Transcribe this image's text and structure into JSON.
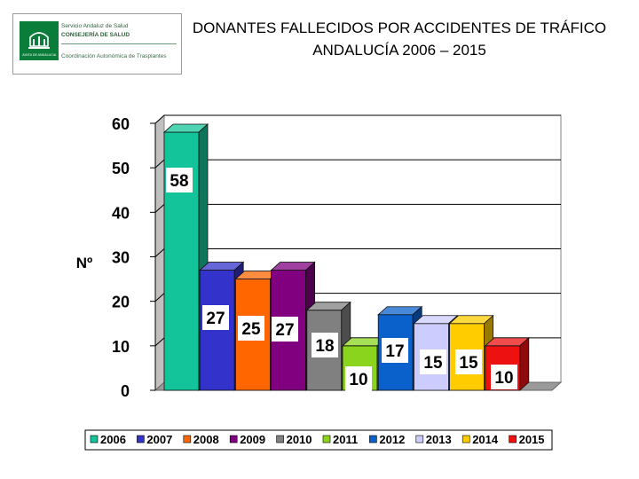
{
  "header": {
    "title_line1": "DONANTES FALLECIDOS POR ACCIDENTES DE TRÁFICO",
    "title_line2": "ANDALUCÍA 2006 – 2015"
  },
  "logo": {
    "line1": "Servicio Andaluz de Salud",
    "line2": "CONSEJERÍA DE SALUD",
    "line3": "Coordinación Autonómica de Trasplantes",
    "emblem_text": "JUNTA DE ANDALUCIA"
  },
  "chart_data": {
    "type": "bar",
    "title": "DONANTES FALLECIDOS POR ACCIDENTES DE TRÁFICO ANDALUCÍA 2006 – 2015",
    "xlabel": "",
    "ylabel": "Nº",
    "ylim": [
      0,
      60
    ],
    "yticks": [
      0,
      10,
      20,
      30,
      40,
      50,
      60
    ],
    "grid": true,
    "legend_position": "bottom",
    "style": "3d-column",
    "categories": [
      "2006",
      "2007",
      "2008",
      "2009",
      "2010",
      "2011",
      "2012",
      "2013",
      "2014",
      "2015"
    ],
    "values": [
      58,
      27,
      25,
      27,
      18,
      10,
      17,
      15,
      15,
      10
    ],
    "colors": [
      "#13c49a",
      "#3333cc",
      "#ff6600",
      "#800080",
      "#808080",
      "#8ad41e",
      "#0b61cc",
      "#ccccff",
      "#ffcc00",
      "#ee1111"
    ]
  }
}
